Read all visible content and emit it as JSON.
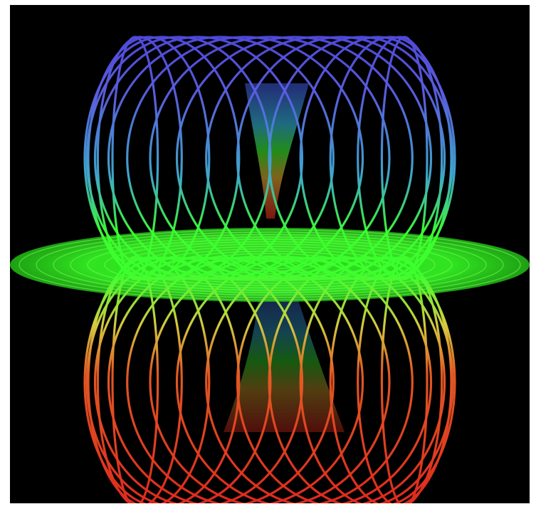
{
  "image": {
    "subject": "torus-field-lines",
    "background_color": "#000000",
    "palette": {
      "top": "#4a3fd8",
      "upper_mid": "#40a8e0",
      "middle": "#3cff2e",
      "lower_mid": "#e0c030",
      "bottom": "#e22a1e"
    }
  }
}
